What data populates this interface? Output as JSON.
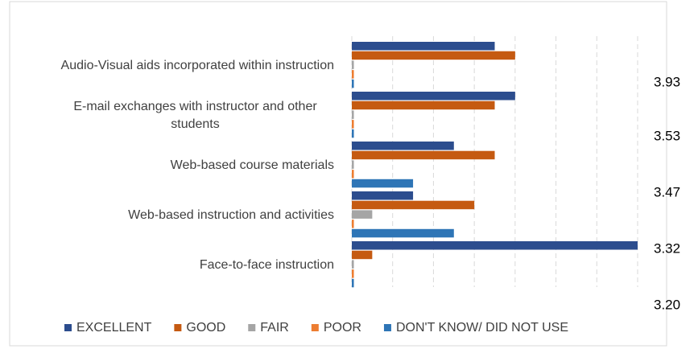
{
  "chart_data": {
    "type": "hbar",
    "categories": [
      "Audio-Visual aids incorporated within instruction",
      "E-mail exchanges with instructor and other students",
      "Web-based course materials",
      "Web-based instruction and activities",
      "Face-to-face instruction"
    ],
    "series": [
      {
        "name": "EXCELLENT",
        "color": "#2c4d8e",
        "values": [
          3.5,
          4,
          2.5,
          1.5,
          7
        ]
      },
      {
        "name": "GOOD",
        "color": "#c55a11",
        "values": [
          4,
          3.5,
          3.5,
          3,
          0.5
        ]
      },
      {
        "name": "FAIR",
        "color": "#a5a5a5",
        "values": [
          0.05,
          0.05,
          0.05,
          0.5,
          0.05
        ]
      },
      {
        "name": "POOR",
        "color": "#ed7d31",
        "values": [
          0.05,
          0.05,
          0.05,
          0.05,
          0.05
        ]
      },
      {
        "name": "DON'T KNOW/ DID NOT USE",
        "color": "#2e75b6",
        "values": [
          0.05,
          0.05,
          1.5,
          2.5,
          0.05
        ]
      }
    ],
    "xlim": [
      0,
      7
    ],
    "xticks": [
      0,
      1,
      2,
      3,
      4,
      5,
      6,
      7
    ],
    "grid": true,
    "legend": "bottom",
    "annotations": [
      "3.93",
      "3.53",
      "3.47",
      "3.32",
      "3.20"
    ]
  }
}
